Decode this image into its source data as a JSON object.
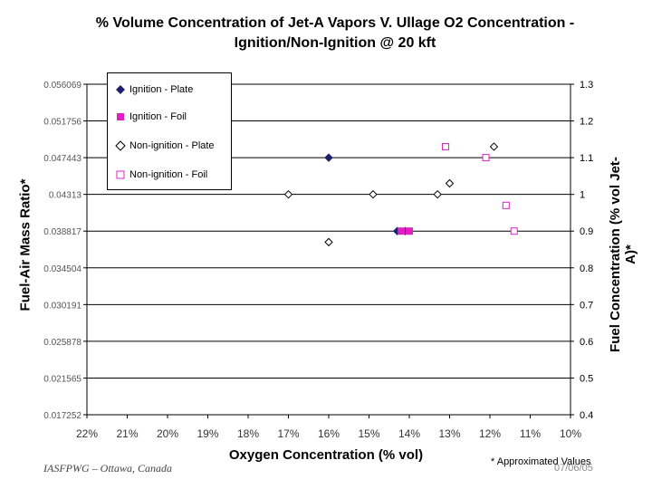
{
  "chart_data": {
    "type": "scatter",
    "title": "% Volume Concentration of Jet-A Vapors V. Ullage O2 Concentration -",
    "subtitle": "Ignition/Non-Ignition @ 20 kft",
    "xlabel": "Oxygen Concentration (% vol)",
    "ylabel_left": "Fuel-Air Mass Ratio*",
    "ylabel_right": "Fuel Concentration (% vol Jet-A)*",
    "xlim": [
      22,
      10
    ],
    "x_reversed": true,
    "x_ticks": [
      "22%",
      "21%",
      "20%",
      "19%",
      "18%",
      "17%",
      "16%",
      "15%",
      "14%",
      "13%",
      "12%",
      "11%",
      "10%"
    ],
    "ylim_right": [
      0.4,
      1.3
    ],
    "right_ticks": [
      "1.3",
      "1.2",
      "1.1",
      "1",
      "0.9",
      "0.8",
      "0.7",
      "0.6",
      "0.5",
      "0.4"
    ],
    "left_ticks": [
      "0.056069",
      "0.051756",
      "0.047443",
      "0.04313",
      "0.038817",
      "0.034504",
      "0.030191",
      "0.025878",
      "0.021565",
      "0.017252"
    ],
    "grid": "horizontal",
    "legend_position": "top-left",
    "series": [
      {
        "name": "Ignition - Plate",
        "marker": "filled-diamond",
        "color": "#1f1f6f",
        "x": [
          16.0,
          14.3,
          14.1
        ],
        "y": [
          1.1,
          0.9,
          0.9
        ]
      },
      {
        "name": "Ignition - Foil",
        "marker": "filled-square",
        "color": "#e020c0",
        "x": [
          14.2,
          14.0
        ],
        "y": [
          0.9,
          0.9
        ]
      },
      {
        "name": "Non-ignition - Plate",
        "marker": "open-diamond",
        "color": "#000000",
        "x": [
          16.0,
          17.0,
          14.9,
          13.3,
          13.0,
          11.9
        ],
        "y": [
          0.87,
          1.0,
          1.0,
          1.0,
          1.03,
          1.13
        ]
      },
      {
        "name": "Non-ignition - Foil",
        "marker": "open-square",
        "color": "#e020c0",
        "x": [
          13.1,
          12.1,
          11.6,
          11.4
        ],
        "y": [
          1.13,
          1.1,
          0.97,
          0.9
        ]
      }
    ]
  },
  "footer": {
    "left": "IASFPWG – Ottawa, Canada",
    "right": "* Approximated Values",
    "date": "07/06/05"
  }
}
